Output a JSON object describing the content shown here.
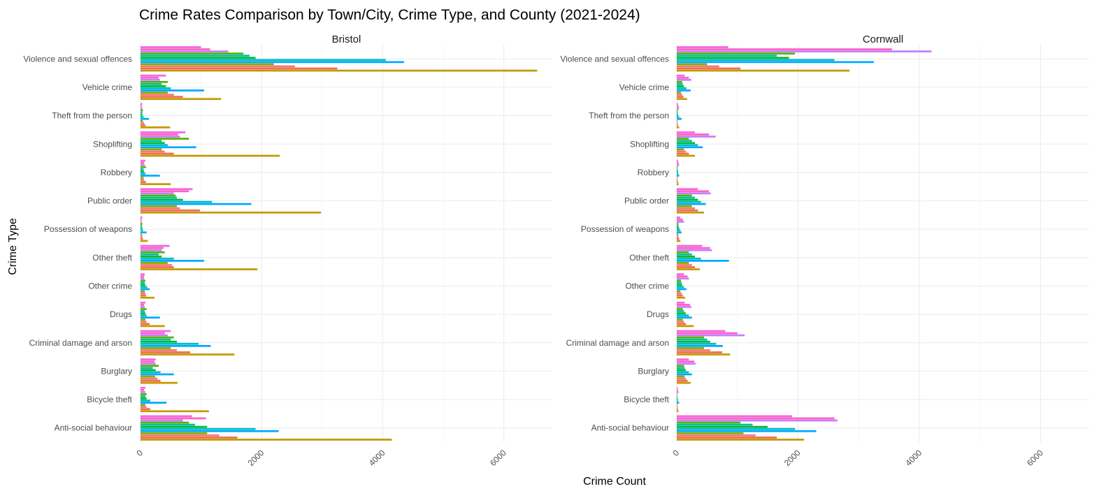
{
  "chart_data": {
    "type": "bar",
    "orientation": "horizontal",
    "title": "Crime Rates Comparison by Town/City, Crime Type, and County (2021-2024)",
    "xlabel": "Crime Count",
    "ylabel": "Crime Type",
    "xlim": [
      0,
      6800
    ],
    "x_ticks": [
      0,
      2000,
      4000,
      6000
    ],
    "x_tick_labels": [
      "0",
      "2000",
      "4000",
      "6000"
    ],
    "grid": true,
    "legend": "none",
    "categories": [
      "Violence and sexual offences",
      "Vehicle crime",
      "Theft from the person",
      "Shoplifting",
      "Robbery",
      "Public order",
      "Possession of weapons",
      "Other theft",
      "Other crime",
      "Drugs",
      "Criminal damage and arson",
      "Burglary",
      "Bicycle theft",
      "Anti-social behaviour"
    ],
    "panels": [
      {
        "name": "Bristol",
        "categories": [
          {
            "category": "Violence and sexual offences",
            "values": [
              6550,
              3250,
              2550,
              2200,
              4350,
              4050,
              1900,
              1800,
              1700,
              1450,
              1150,
              1000
            ]
          },
          {
            "category": "Vehicle crime",
            "values": [
              1330,
              700,
              550,
              450,
              1050,
              500,
              420,
              350,
              450,
              320,
              300,
              420
            ]
          },
          {
            "category": "Theft from the person",
            "values": [
              490,
              80,
              60,
              40,
              140,
              50,
              30,
              30,
              40,
              30,
              20,
              30
            ]
          },
          {
            "category": "Shoplifting",
            "values": [
              2300,
              550,
              400,
              350,
              920,
              450,
              400,
              350,
              800,
              650,
              620,
              740
            ]
          },
          {
            "category": "Robbery",
            "values": [
              500,
              90,
              60,
              50,
              320,
              80,
              60,
              50,
              90,
              70,
              60,
              80
            ]
          },
          {
            "category": "Public order",
            "values": [
              2980,
              980,
              650,
              600,
              1830,
              1180,
              700,
              600,
              580,
              550,
              800,
              860
            ]
          },
          {
            "category": "Possession of weapons",
            "values": [
              120,
              40,
              30,
              25,
              100,
              40,
              30,
              25,
              30,
              20,
              20,
              30
            ]
          },
          {
            "category": "Other theft",
            "values": [
              1930,
              550,
              520,
              450,
              1050,
              550,
              350,
              300,
              400,
              350,
              380,
              480
            ]
          },
          {
            "category": "Other crime",
            "values": [
              230,
              90,
              80,
              70,
              150,
              110,
              80,
              70,
              80,
              60,
              60,
              70
            ]
          },
          {
            "category": "Drugs",
            "values": [
              400,
              150,
              100,
              80,
              320,
              100,
              80,
              70,
              100,
              70,
              60,
              80
            ]
          },
          {
            "category": "Criminal damage and arson",
            "values": [
              1550,
              820,
              600,
              500,
              1160,
              960,
              600,
              500,
              550,
              450,
              400,
              500
            ]
          },
          {
            "category": "Burglary",
            "values": [
              610,
              330,
              280,
              240,
              550,
              330,
              250,
              200,
              300,
              250,
              230,
              250
            ]
          },
          {
            "category": "Bicycle theft",
            "values": [
              1130,
              160,
              100,
              80,
              430,
              160,
              100,
              80,
              100,
              80,
              60,
              80
            ]
          },
          {
            "category": "Anti-social behaviour",
            "values": [
              4150,
              1600,
              1300,
              1100,
              2280,
              1900,
              1100,
              900,
              800,
              700,
              1080,
              850
            ]
          }
        ]
      },
      {
        "name": "Cornwall",
        "categories": [
          {
            "category": "Violence and sexual offences",
            "values": [
              2850,
              1050,
              700,
              500,
              3250,
              2600,
              1850,
              1650,
              1950,
              4200,
              3550,
              850
            ]
          },
          {
            "category": "Vehicle crime",
            "values": [
              170,
              110,
              90,
              70,
              230,
              160,
              120,
              100,
              90,
              240,
              200,
              130
            ]
          },
          {
            "category": "Theft from the person",
            "values": [
              40,
              20,
              15,
              10,
              80,
              40,
              20,
              15,
              20,
              40,
              30,
              20
            ]
          },
          {
            "category": "Shoplifting",
            "values": [
              300,
              200,
              150,
              120,
              430,
              350,
              300,
              250,
              200,
              640,
              530,
              300
            ]
          },
          {
            "category": "Robbery",
            "values": [
              30,
              20,
              15,
              10,
              40,
              25,
              20,
              15,
              15,
              40,
              30,
              20
            ]
          },
          {
            "category": "Public order",
            "values": [
              450,
              350,
              300,
              250,
              480,
              400,
              350,
              300,
              250,
              560,
              530,
              350
            ]
          },
          {
            "category": "Possession of weapons",
            "values": [
              60,
              40,
              30,
              25,
              80,
              60,
              40,
              30,
              30,
              120,
              100,
              60
            ]
          },
          {
            "category": "Other theft",
            "values": [
              380,
              300,
              250,
              200,
              860,
              400,
              300,
              250,
              200,
              580,
              550,
              420
            ]
          },
          {
            "category": "Other crime",
            "values": [
              140,
              100,
              80,
              60,
              160,
              120,
              90,
              80,
              70,
              200,
              180,
              120
            ]
          },
          {
            "category": "Drugs",
            "values": [
              280,
              150,
              120,
              100,
              250,
              200,
              150,
              120,
              100,
              240,
              220,
              130
            ]
          },
          {
            "category": "Criminal damage and arson",
            "values": [
              880,
              750,
              550,
              450,
              760,
              650,
              550,
              500,
              450,
              1120,
              1000,
              800
            ]
          },
          {
            "category": "Burglary",
            "values": [
              230,
              180,
              150,
              130,
              250,
              200,
              150,
              130,
              120,
              310,
              290,
              200
            ]
          },
          {
            "category": "Bicycle theft",
            "values": [
              30,
              20,
              15,
              10,
              40,
              20,
              15,
              10,
              10,
              30,
              20,
              15
            ]
          },
          {
            "category": "Anti-social behaviour",
            "values": [
              2100,
              1650,
              1300,
              1100,
              2300,
              1950,
              1500,
              1250,
              1050,
              2650,
              2600,
              1900
            ]
          }
        ]
      }
    ],
    "series_colors": [
      "#C49A00",
      "#ED6E50",
      "#F8766D",
      "#7CAE00",
      "#00A9FF",
      "#00BFC4",
      "#00BA38",
      "#00C19F",
      "#53B400",
      "#C77CFF",
      "#FF61C3",
      "#F564E3"
    ]
  }
}
